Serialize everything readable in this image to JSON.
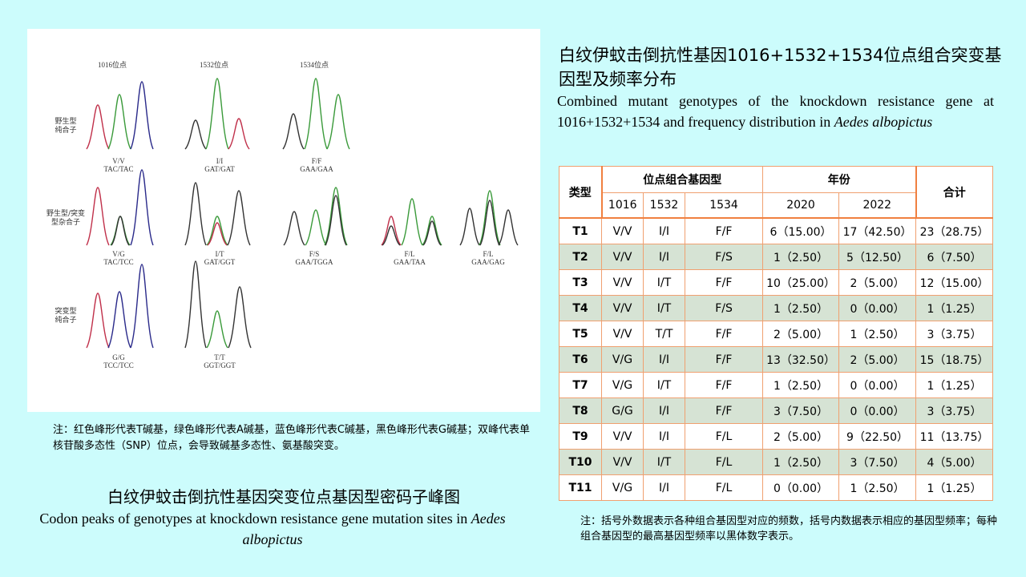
{
  "figure": {
    "loci": [
      "1016位点",
      "1532位点",
      "1534位点"
    ],
    "rows": [
      {
        "label_lines": [
          "野生型",
          "纯合子"
        ]
      },
      {
        "label_lines": [
          "野生型/突变",
          "型杂合子"
        ]
      },
      {
        "label_lines": [
          "突变型",
          "纯合子"
        ]
      }
    ],
    "peaks": [
      {
        "genotype": "V/V",
        "codon": "TAC/TAC"
      },
      {
        "genotype": "I/I",
        "codon": "GAT/GAT"
      },
      {
        "genotype": "F/F",
        "codon": "GAA/GAA"
      },
      {
        "genotype": "V/G",
        "codon": "TAC/TCC"
      },
      {
        "genotype": "I/T",
        "codon": "GAT/GGT"
      },
      {
        "genotype": "F/S",
        "codon": "GAA/TGGA"
      },
      {
        "genotype": "F/L",
        "codon": "GAA/TAA"
      },
      {
        "genotype": "F/L",
        "codon": "GAA/GAG"
      },
      {
        "genotype": "G/G",
        "codon": "TCC/TCC"
      },
      {
        "genotype": "T/T",
        "codon": "GGT/GGT"
      }
    ],
    "colors": {
      "red": "#c0304a",
      "green": "#3a9a3a",
      "blue": "#2a2a8a",
      "black": "#333333"
    }
  },
  "peak_note": "注：红色峰形代表T碱基，绿色峰形代表A碱基，蓝色峰形代表C碱基，黑色峰形代表G碱基；双峰代表单核苷酸多态性（SNP）位点，会导致碱基多态性、氨基酸突变。",
  "peak_title_cn": "白纹伊蚊击倒抗性基因突变位点基因型密码子峰图",
  "peak_title_en_prefix": "Codon peaks of genotypes  at knockdown resistance  gene mutation sites in ",
  "peak_title_en_italic": "Aedes  albopictus",
  "table_title_cn": "白纹伊蚊击倒抗性基因1016+1532+1534位点组合突变基因型及频率分布",
  "table_title_en_prefix": "Combined mutant genotypes  of the knockdown  resistance  gene at 1016+1532+1534 and frequency  distribution  in ",
  "table_title_en_italic": "Aedes albopictus",
  "table": {
    "headers": {
      "type": "类型",
      "combo": "位点组合基因型",
      "year": "年份",
      "total": "合计",
      "loci": [
        "1016",
        "1532",
        "1534"
      ],
      "years": [
        "2020",
        "2022"
      ]
    },
    "rows": [
      {
        "type": "T1",
        "l1016": "V/V",
        "l1532": "I/I",
        "l1534": "F/F",
        "y2020": "6（15.00）",
        "y2022": "17（42.50）",
        "total": "23（28.75）"
      },
      {
        "type": "T2",
        "l1016": "V/V",
        "l1532": "I/I",
        "l1534": "F/S",
        "y2020": "1（2.50）",
        "y2022": "5（12.50）",
        "total": "6（7.50）"
      },
      {
        "type": "T3",
        "l1016": "V/V",
        "l1532": "I/T",
        "l1534": "F/F",
        "y2020": "10（25.00）",
        "y2022": "2（5.00）",
        "total": "12（15.00）"
      },
      {
        "type": "T4",
        "l1016": "V/V",
        "l1532": "I/T",
        "l1534": "F/S",
        "y2020": "1（2.50）",
        "y2022": "0（0.00）",
        "total": "1（1.25）"
      },
      {
        "type": "T5",
        "l1016": "V/V",
        "l1532": "T/T",
        "l1534": "F/F",
        "y2020": "2（5.00）",
        "y2022": "1（2.50）",
        "total": "3（3.75）"
      },
      {
        "type": "T6",
        "l1016": "V/G",
        "l1532": "I/I",
        "l1534": "F/F",
        "y2020": "13（32.50）",
        "y2022": "2（5.00）",
        "total": "15（18.75）"
      },
      {
        "type": "T7",
        "l1016": "V/G",
        "l1532": "I/T",
        "l1534": "F/F",
        "y2020": "1（2.50）",
        "y2022": "0（0.00）",
        "total": "1（1.25）"
      },
      {
        "type": "T8",
        "l1016": "G/G",
        "l1532": "I/I",
        "l1534": "F/F",
        "y2020": "3（7.50）",
        "y2022": "0（0.00）",
        "total": "3（3.75）"
      },
      {
        "type": "T9",
        "l1016": "V/V",
        "l1532": "I/I",
        "l1534": "F/L",
        "y2020": "2（5.00）",
        "y2022": "9（22.50）",
        "total": "11（13.75）"
      },
      {
        "type": "T10",
        "l1016": "V/V",
        "l1532": "I/T",
        "l1534": "F/L",
        "y2020": "1（2.50）",
        "y2022": "3（7.50）",
        "total": "4（5.00）"
      },
      {
        "type": "T11",
        "l1016": "V/G",
        "l1532": "I/I",
        "l1534": "F/L",
        "y2020": "0（0.00）",
        "y2022": "1（2.50）",
        "total": "1（1.25）"
      }
    ]
  },
  "table_note": "注：括号外数据表示各种组合基因型对应的频数，括号内数据表示相应的基因型频率；每种组合基因型的最高基因型频率以黑体数字表示。"
}
